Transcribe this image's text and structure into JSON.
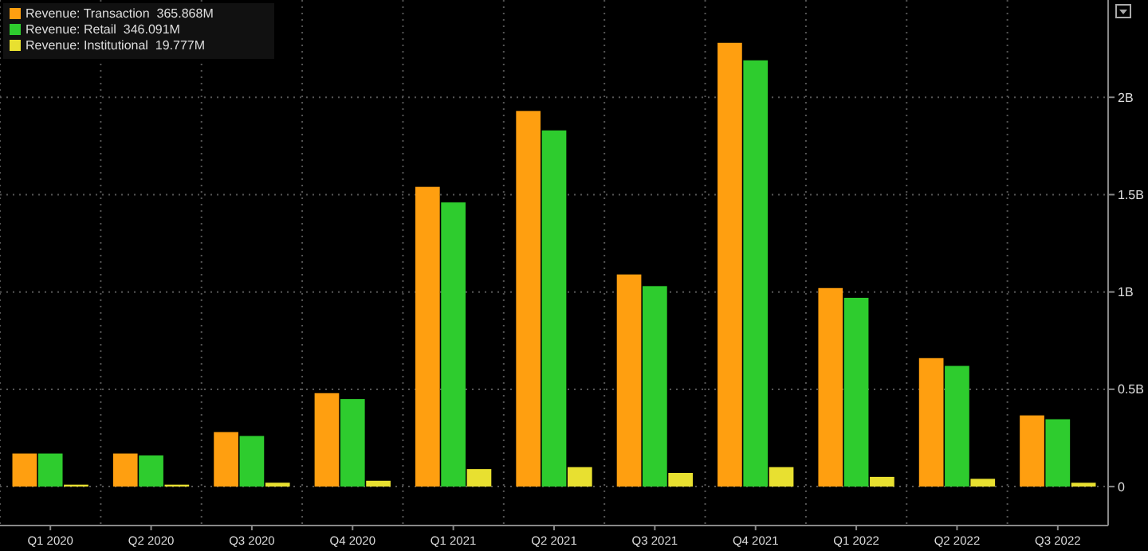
{
  "chart_data": {
    "type": "bar",
    "categories": [
      "Q1 2020",
      "Q2 2020",
      "Q3 2020",
      "Q4 2020",
      "Q1 2021",
      "Q2 2021",
      "Q3 2021",
      "Q4 2021",
      "Q1 2022",
      "Q2 2022",
      "Q3 2022"
    ],
    "series": [
      {
        "name": "Revenue: Transaction  365.868M",
        "color": "#ff9f10",
        "values": [
          0.17,
          0.17,
          0.28,
          0.48,
          1.54,
          1.93,
          1.09,
          2.28,
          1.02,
          0.66,
          0.365868
        ]
      },
      {
        "name": "Revenue: Retail  346.091M",
        "color": "#2ecc2e",
        "values": [
          0.17,
          0.16,
          0.26,
          0.45,
          1.46,
          1.83,
          1.03,
          2.19,
          0.97,
          0.62,
          0.346091
        ]
      },
      {
        "name": "Revenue: Institutional  19.777M",
        "color": "#e8e030",
        "values": [
          0.01,
          0.01,
          0.02,
          0.03,
          0.09,
          0.1,
          0.07,
          0.1,
          0.05,
          0.04,
          0.019777
        ]
      }
    ],
    "ylim": [
      -0.2,
      2.5
    ],
    "yticks": [
      0,
      {
        "value": 0.5,
        "label": "0.5B"
      },
      {
        "value": 1,
        "label": "1B"
      },
      {
        "value": 1.5,
        "label": "1.5B"
      },
      {
        "value": 2,
        "label": "2B"
      }
    ],
    "grid": true,
    "legend": "top left"
  }
}
